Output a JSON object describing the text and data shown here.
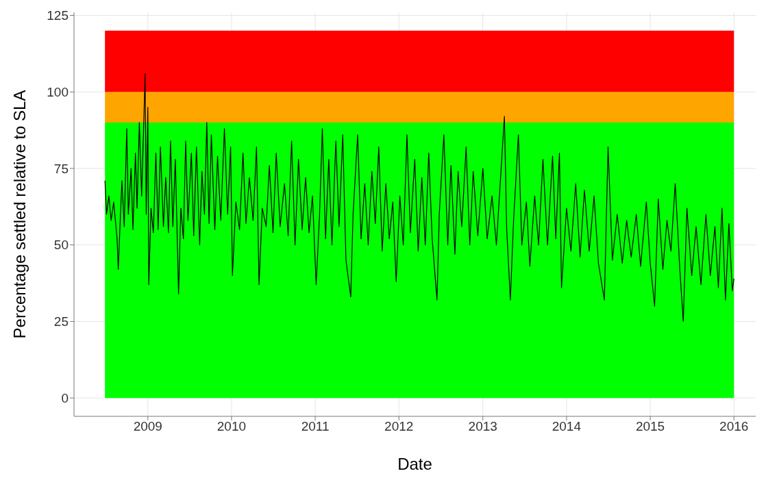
{
  "chart_data": {
    "type": "line",
    "xlabel": "Date",
    "ylabel": "Percentage settled relative to SLA",
    "xlim": [
      "2008-02-14",
      "2016-04-05"
    ],
    "xticks": [
      "2009",
      "2010",
      "2011",
      "2012",
      "2013",
      "2014",
      "2015",
      "2016"
    ],
    "ylim": [
      -6,
      126
    ],
    "yticks": [
      0,
      25,
      50,
      75,
      100,
      125
    ],
    "grid": true,
    "bands": [
      {
        "axis": "y",
        "from": 0,
        "to": 90,
        "color": "#00ff00"
      },
      {
        "axis": "y",
        "from": 90,
        "to": 100,
        "color": "#ffa500"
      },
      {
        "axis": "y",
        "from": 100,
        "to": 120,
        "color": "#ff0000"
      }
    ],
    "series": [
      {
        "color": "#000000",
        "x": [
          "2008-06-28",
          "2008-07-05",
          "2008-07-15",
          "2008-07-25",
          "2008-08-05",
          "2008-08-20",
          "2008-08-25",
          "2008-09-01",
          "2008-09-10",
          "2008-09-20",
          "2008-10-01",
          "2008-10-08",
          "2008-10-20",
          "2008-10-28",
          "2008-11-08",
          "2008-11-15",
          "2008-11-25",
          "2008-12-05",
          "2008-12-15",
          "2008-12-20",
          "2008-12-25",
          "2009-01-01",
          "2009-01-05",
          "2009-01-15",
          "2009-01-25",
          "2009-02-05",
          "2009-02-15",
          "2009-02-25",
          "2009-03-10",
          "2009-03-20",
          "2009-04-01",
          "2009-04-10",
          "2009-04-20",
          "2009-05-01",
          "2009-05-15",
          "2009-05-25",
          "2009-06-05",
          "2009-06-15",
          "2009-06-25",
          "2009-07-10",
          "2009-07-20",
          "2009-08-01",
          "2009-08-15",
          "2009-08-25",
          "2009-09-05",
          "2009-09-15",
          "2009-09-25",
          "2009-10-05",
          "2009-10-20",
          "2009-11-01",
          "2009-11-15",
          "2009-12-01",
          "2009-12-15",
          "2009-12-28",
          "2010-01-05",
          "2010-01-20",
          "2010-02-05",
          "2010-02-20",
          "2010-03-05",
          "2010-03-20",
          "2010-04-05",
          "2010-04-20",
          "2010-05-01",
          "2010-05-15",
          "2010-06-01",
          "2010-06-15",
          "2010-07-01",
          "2010-07-15",
          "2010-08-01",
          "2010-08-20",
          "2010-09-05",
          "2010-09-20",
          "2010-10-05",
          "2010-10-20",
          "2010-11-05",
          "2010-11-20",
          "2010-12-05",
          "2010-12-20",
          "2011-01-05",
          "2011-01-20",
          "2011-02-01",
          "2011-02-15",
          "2011-03-01",
          "2011-03-15",
          "2011-04-01",
          "2011-04-15",
          "2011-05-01",
          "2011-05-15",
          "2011-06-05",
          "2011-06-15",
          "2011-07-05",
          "2011-07-20",
          "2011-08-05",
          "2011-08-20",
          "2011-09-05",
          "2011-09-20",
          "2011-10-05",
          "2011-10-20",
          "2011-11-05",
          "2011-11-20",
          "2011-12-05",
          "2011-12-20",
          "2012-01-05",
          "2012-01-20",
          "2012-02-05",
          "2012-02-20",
          "2012-03-10",
          "2012-03-25",
          "2012-04-10",
          "2012-04-25",
          "2012-05-10",
          "2012-05-25",
          "2012-06-15",
          "2012-06-25",
          "2012-07-15",
          "2012-08-01",
          "2012-08-15",
          "2012-09-01",
          "2012-09-15",
          "2012-10-01",
          "2012-10-20",
          "2012-11-05",
          "2012-11-20",
          "2012-12-10",
          "2013-01-01",
          "2013-01-20",
          "2013-02-10",
          "2013-03-01",
          "2013-04-05",
          "2013-04-15",
          "2013-05-01",
          "2013-05-15",
          "2013-06-05",
          "2013-06-20",
          "2013-07-10",
          "2013-07-25",
          "2013-08-15",
          "2013-09-01",
          "2013-09-20",
          "2013-10-10",
          "2013-11-01",
          "2013-11-15",
          "2013-12-01",
          "2013-12-10",
          "2014-01-01",
          "2014-01-20",
          "2014-02-10",
          "2014-03-01",
          "2014-03-20",
          "2014-04-10",
          "2014-05-01",
          "2014-05-20",
          "2014-06-15",
          "2014-07-01",
          "2014-07-20",
          "2014-08-10",
          "2014-09-01",
          "2014-09-20",
          "2014-10-10",
          "2014-11-01",
          "2014-11-20",
          "2014-12-15",
          "2015-01-01",
          "2015-01-20",
          "2015-02-05",
          "2015-02-25",
          "2015-03-15",
          "2015-04-01",
          "2015-04-20",
          "2015-05-10",
          "2015-05-25",
          "2015-06-10",
          "2015-07-01",
          "2015-07-20",
          "2015-08-10",
          "2015-09-01",
          "2015-09-20",
          "2015-10-10",
          "2015-10-25",
          "2015-11-10",
          "2015-11-25",
          "2015-12-10",
          "2015-12-25",
          "2016-01-01"
        ],
        "values": [
          71,
          60,
          66,
          58,
          64,
          52,
          42,
          55,
          71,
          56,
          88,
          60,
          75,
          55,
          80,
          62,
          90,
          66,
          92,
          106,
          60,
          95,
          37,
          62,
          54,
          80,
          55,
          82,
          56,
          72,
          54,
          84,
          56,
          78,
          34,
          62,
          52,
          84,
          58,
          80,
          53,
          82,
          50,
          74,
          60,
          90,
          57,
          86,
          55,
          79,
          58,
          88,
          60,
          82,
          40,
          64,
          55,
          80,
          57,
          72,
          58,
          82,
          37,
          62,
          56,
          76,
          54,
          80,
          56,
          70,
          53,
          84,
          50,
          78,
          55,
          72,
          54,
          66,
          37,
          60,
          88,
          52,
          78,
          50,
          84,
          56,
          86,
          45,
          33,
          60,
          86,
          52,
          70,
          50,
          74,
          57,
          82,
          48,
          70,
          52,
          64,
          38,
          66,
          50,
          86,
          54,
          78,
          48,
          72,
          50,
          80,
          52,
          32,
          60,
          86,
          50,
          76,
          47,
          74,
          56,
          82,
          50,
          74,
          53,
          75,
          52,
          66,
          50,
          92,
          55,
          32,
          58,
          86,
          50,
          64,
          43,
          66,
          50,
          78,
          50,
          79,
          52,
          80,
          36,
          62,
          48,
          70,
          46,
          68,
          48,
          66,
          44,
          32,
          82,
          45,
          60,
          44,
          58,
          46,
          60,
          43,
          64,
          44,
          30,
          65,
          42,
          58,
          48,
          70,
          42,
          25,
          62,
          40,
          56,
          37,
          60,
          40,
          56,
          36,
          62,
          32,
          57,
          35,
          39
        ]
      }
    ]
  }
}
